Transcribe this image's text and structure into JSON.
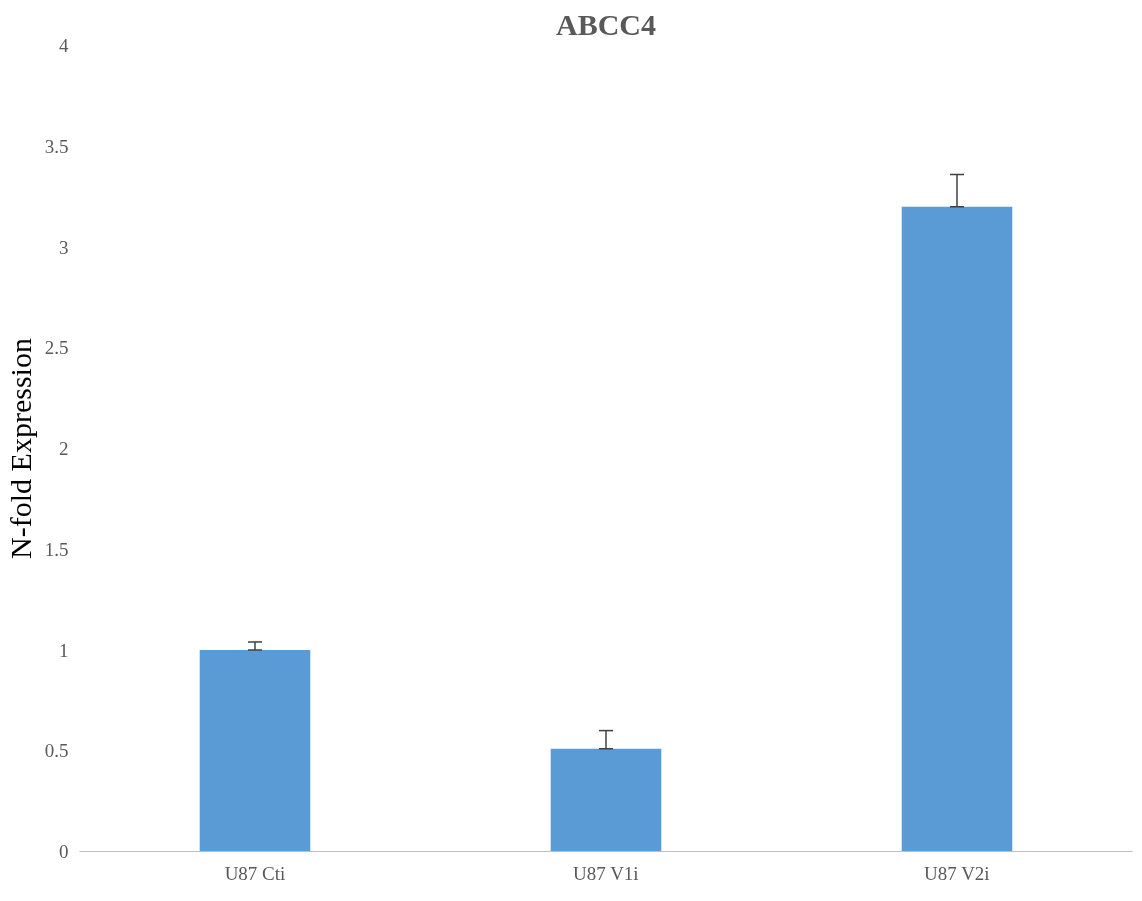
{
  "chart_data": {
    "type": "bar",
    "title": "ABCC4",
    "ylabel": "N-fold Expression",
    "categories": [
      "U87 Cti",
      "U87 V1i",
      "U87 V2i"
    ],
    "values": [
      1.0,
      0.51,
      3.2
    ],
    "color": "#5b9bd5",
    "errors": [
      [
        1.0,
        1.04
      ],
      [
        0.51,
        0.6
      ],
      [
        3.2,
        3.36
      ]
    ],
    "ylim": [
      0,
      4
    ],
    "yticks": [
      0,
      0.5,
      1,
      1.5,
      2,
      2.5,
      3,
      3.5,
      4
    ],
    "grid": false
  }
}
